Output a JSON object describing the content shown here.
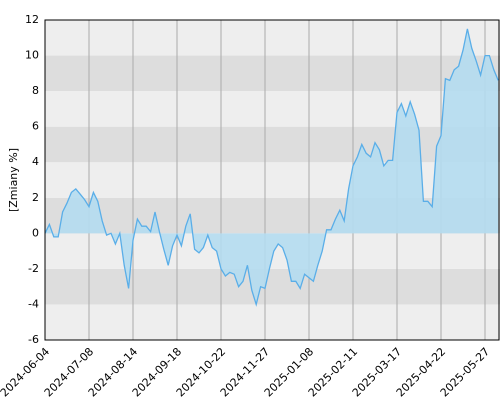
{
  "chart_data": {
    "type": "area",
    "y_label": "[Zmiany %]",
    "categories": [
      "2024-06-04",
      null,
      null,
      null,
      null,
      null,
      null,
      null,
      null,
      null,
      "2024-07-08",
      null,
      null,
      null,
      null,
      null,
      null,
      null,
      null,
      null,
      "2024-08-14",
      null,
      null,
      null,
      null,
      null,
      null,
      null,
      null,
      null,
      "2024-09-18",
      null,
      null,
      null,
      null,
      null,
      null,
      null,
      null,
      null,
      "2024-10-22",
      null,
      null,
      null,
      null,
      null,
      null,
      null,
      null,
      null,
      "2024-11-27",
      null,
      null,
      null,
      null,
      null,
      null,
      null,
      null,
      null,
      "2025-01-08",
      null,
      null,
      null,
      null,
      null,
      null,
      null,
      null,
      null,
      "2025-02-11",
      null,
      null,
      null,
      null,
      null,
      null,
      null,
      null,
      null,
      "2025-03-17",
      null,
      null,
      null,
      null,
      null,
      null,
      null,
      null,
      null,
      "2025-04-22",
      null,
      null,
      null,
      null,
      null,
      null,
      null,
      null,
      null,
      "2025-05-27",
      null,
      null,
      null
    ],
    "values": [
      0.0,
      0.5,
      -0.2,
      -0.2,
      1.2,
      1.7,
      2.3,
      2.5,
      2.2,
      1.9,
      1.5,
      2.3,
      1.8,
      0.7,
      -0.1,
      0.0,
      -0.6,
      0.0,
      -1.8,
      -3.1,
      -0.4,
      0.8,
      0.4,
      0.4,
      0.1,
      1.2,
      0.1,
      -0.9,
      -1.8,
      -0.7,
      -0.1,
      -0.7,
      0.4,
      1.1,
      -0.9,
      -1.1,
      -0.8,
      -0.1,
      -0.8,
      -1.0,
      -2.0,
      -2.4,
      -2.2,
      -2.3,
      -3.0,
      -2.7,
      -1.8,
      -3.2,
      -4.0,
      -3.0,
      -3.1,
      -2.0,
      -1.0,
      -0.6,
      -0.8,
      -1.5,
      -2.7,
      -2.7,
      -3.1,
      -2.3,
      -2.5,
      -2.7,
      -1.8,
      -1.0,
      0.2,
      0.2,
      0.8,
      1.3,
      0.7,
      2.5,
      3.8,
      4.3,
      5.0,
      4.5,
      4.3,
      5.1,
      4.7,
      3.8,
      4.1,
      4.1,
      6.8,
      7.3,
      6.6,
      7.4,
      6.7,
      5.8,
      1.8,
      1.8,
      1.5,
      4.9,
      5.5,
      8.7,
      8.6,
      9.2,
      9.4,
      10.3,
      11.5,
      10.4,
      9.7,
      8.9,
      10.0,
      10.0,
      9.2,
      8.6
    ],
    "color": "#5aaee8",
    "fill": "#b4dcf0",
    "ylim": [
      -6,
      12
    ],
    "yticks": [
      -6,
      -4,
      -2,
      0,
      2,
      4,
      6,
      8,
      10,
      12
    ],
    "band_colors": [
      "#eeeeee",
      "#dddddd"
    ],
    "grid": true
  }
}
